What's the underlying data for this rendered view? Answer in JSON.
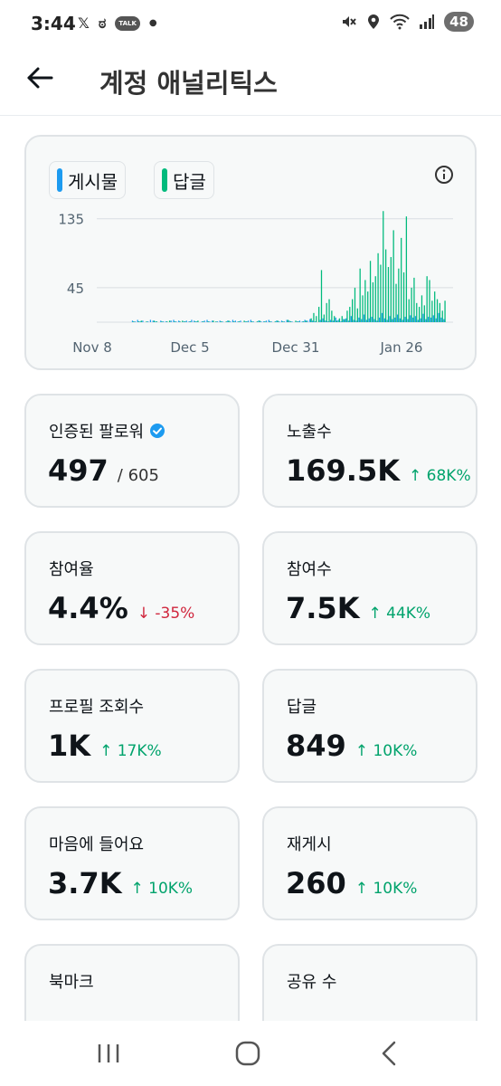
{
  "status_bar": {
    "time": "3:44",
    "left_icons": [
      "x-icon",
      "threads-icon",
      "kakaotalk-icon",
      "dot-icon"
    ],
    "talk_label": "TALK",
    "right_icons": [
      "mute-icon",
      "location-icon",
      "wifi-icon",
      "signal-icon"
    ],
    "battery": "48"
  },
  "header": {
    "title": "계정 애널리틱스"
  },
  "chart": {
    "legend": [
      {
        "label": "게시물",
        "color": "#1d9bf0"
      },
      {
        "label": "답글",
        "color": "#00ba7c"
      }
    ],
    "chart_data": {
      "type": "bar",
      "x_ticks": [
        "Nov 8",
        "Dec 5",
        "Dec 31",
        "Jan 26"
      ],
      "y_ticks": [
        "135",
        "45"
      ],
      "ylim": [
        0,
        150
      ],
      "grid": true,
      "series": [
        {
          "color": "#1d9bf0",
          "values": [
            0,
            2,
            1,
            3,
            1,
            2,
            0,
            1,
            3,
            2,
            1,
            0,
            2,
            1,
            1,
            0,
            2,
            3,
            1,
            2,
            0,
            1,
            2,
            1,
            3,
            2,
            1,
            0,
            1,
            2,
            3,
            1,
            2,
            0,
            1,
            2,
            1,
            0,
            2,
            1,
            3,
            2,
            1,
            2,
            0,
            1,
            2,
            3,
            1,
            0,
            2,
            1,
            1,
            2,
            3,
            1,
            0,
            2,
            1,
            2,
            1,
            3,
            2,
            1,
            0,
            1,
            2,
            1,
            3,
            2,
            4,
            2,
            1,
            0,
            3,
            5,
            2,
            1,
            3,
            2,
            6,
            3,
            1,
            4,
            5,
            2,
            8,
            3,
            2,
            6,
            4,
            10,
            3,
            5,
            7,
            4,
            2,
            6,
            12,
            5,
            3,
            8,
            4,
            6,
            10,
            5,
            3,
            7,
            4,
            9,
            6,
            8,
            3,
            5,
            11,
            4,
            7,
            6,
            9,
            5,
            12,
            6,
            4
          ]
        },
        {
          "color": "#00ba7c",
          "values": [
            0,
            1,
            0,
            1,
            2,
            0,
            1,
            0,
            0,
            2,
            1,
            0,
            1,
            0,
            1,
            2,
            0,
            1,
            0,
            1,
            2,
            1,
            0,
            1,
            0,
            1,
            2,
            0,
            1,
            0,
            1,
            0,
            2,
            1,
            0,
            1,
            0,
            1,
            2,
            0,
            1,
            0,
            1,
            0,
            2,
            1,
            0,
            1,
            0,
            1,
            2,
            0,
            1,
            0,
            1,
            0,
            1,
            2,
            0,
            1,
            0,
            3,
            1,
            0,
            2,
            1,
            0,
            1,
            2,
            0,
            5,
            12,
            8,
            20,
            68,
            10,
            25,
            30,
            15,
            8,
            2,
            5,
            8,
            4,
            15,
            20,
            30,
            45,
            18,
            70,
            35,
            55,
            40,
            80,
            52,
            60,
            90,
            75,
            145,
            95,
            72,
            85,
            120,
            50,
            70,
            110,
            65,
            138,
            30,
            45,
            58,
            25,
            20,
            35,
            22,
            60,
            55,
            28,
            40,
            30,
            25,
            15,
            28
          ]
        }
      ]
    }
  },
  "stats": [
    {
      "label": "인증된 팔로워",
      "value": "497",
      "sub": "/ 605",
      "change": "",
      "dir": "",
      "verified": true
    },
    {
      "label": "노출수",
      "value": "169.5K",
      "sub": "",
      "change": "↑ 68K%",
      "dir": "up"
    },
    {
      "label": "참여율",
      "value": "4.4%",
      "sub": "",
      "change": "↓ -35%",
      "dir": "down"
    },
    {
      "label": "참여수",
      "value": "7.5K",
      "sub": "",
      "change": "↑ 44K%",
      "dir": "up"
    },
    {
      "label": "프로필 조회수",
      "value": "1K",
      "sub": "",
      "change": "↑ 17K%",
      "dir": "up"
    },
    {
      "label": "답글",
      "value": "849",
      "sub": "",
      "change": "↑ 10K%",
      "dir": "up"
    },
    {
      "label": "마음에 들어요",
      "value": "3.7K",
      "sub": "",
      "change": "↑ 10K%",
      "dir": "up"
    },
    {
      "label": "재게시",
      "value": "260",
      "sub": "",
      "change": "↑ 10K%",
      "dir": "up"
    },
    {
      "label": "북마크",
      "value": "",
      "sub": "",
      "change": "",
      "dir": ""
    },
    {
      "label": "공유 수",
      "value": "",
      "sub": "",
      "change": "",
      "dir": ""
    }
  ],
  "nav": {
    "buttons": [
      "recent-apps",
      "home",
      "back"
    ]
  }
}
